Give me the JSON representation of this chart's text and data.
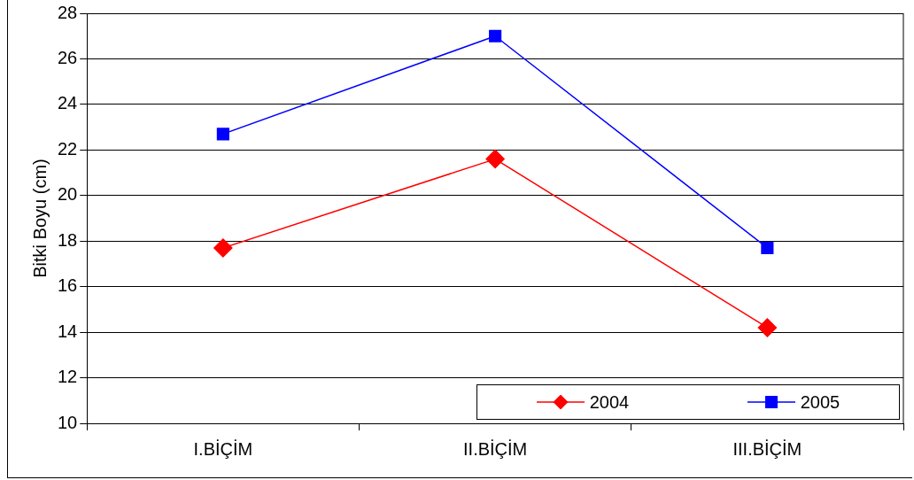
{
  "chart_data": {
    "type": "line",
    "ylabel": "Bitki Boyu (cm)",
    "categories": [
      "I.BİÇİM",
      "II.BİÇİM",
      "III.BİÇİM"
    ],
    "series": [
      {
        "name": "2004",
        "color": "#ff0000",
        "marker": "diamond",
        "values": [
          17.7,
          21.6,
          14.2
        ]
      },
      {
        "name": "2005",
        "color": "#0000ff",
        "marker": "square",
        "values": [
          22.7,
          27.0,
          17.7
        ]
      }
    ],
    "ylim": [
      10,
      28
    ],
    "yticks": [
      10,
      12,
      14,
      16,
      18,
      20,
      22,
      24,
      26,
      28
    ],
    "grid": "y",
    "legend": "bottom right",
    "line_style": "solid"
  }
}
